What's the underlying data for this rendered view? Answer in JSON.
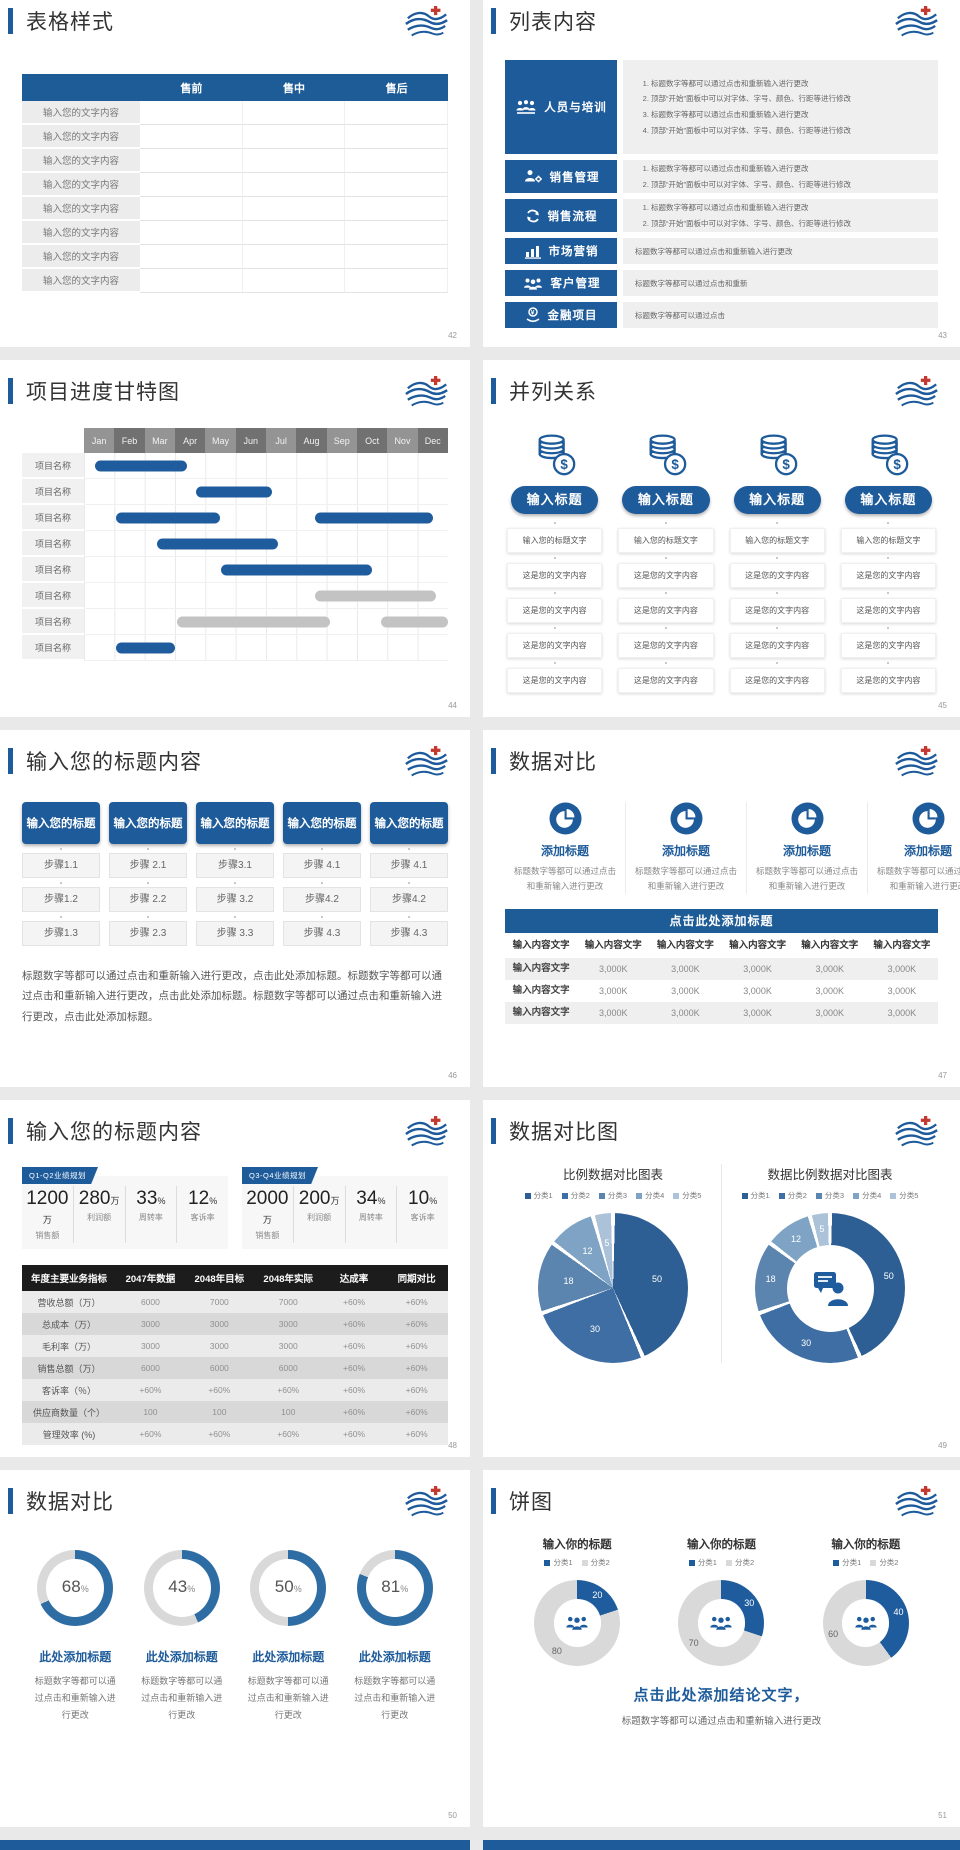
{
  "page": {
    "bg": "#e9e9e9",
    "accent": "#1e5b9a",
    "header_blue": "#1e5c97",
    "bar_blue": "#1f5c9e",
    "bar_gray": "#c3c3c3"
  },
  "chart_data": [
    {
      "type": "gantt",
      "title": "项目进度甘特图",
      "x_labels": [
        "Jan",
        "Feb",
        "Mar",
        "Apr",
        "May",
        "Jun",
        "Jul",
        "Aug",
        "Sep",
        "Oct",
        "Nov",
        "Dec"
      ],
      "rows": [
        {
          "label": "项目名称",
          "bars": [
            {
              "start": 0.35,
              "end": 3.4,
              "color": "#1f5c9e"
            }
          ]
        },
        {
          "label": "项目名称",
          "bars": [
            {
              "start": 3.7,
              "end": 6.2,
              "color": "#1f5c9e"
            }
          ]
        },
        {
          "label": "项目名称",
          "bars": [
            {
              "start": 1.05,
              "end": 4.5,
              "color": "#1f5c9e"
            },
            {
              "start": 7.6,
              "end": 11.5,
              "color": "#1f5c9e"
            }
          ]
        },
        {
          "label": "项目名称",
          "bars": [
            {
              "start": 2.4,
              "end": 6.4,
              "color": "#1f5c9e"
            }
          ]
        },
        {
          "label": "项目名称",
          "bars": [
            {
              "start": 4.5,
              "end": 9.5,
              "color": "#1f5c9e"
            }
          ]
        },
        {
          "label": "项目名称",
          "bars": [
            {
              "start": 7.6,
              "end": 11.6,
              "color": "#c3c3c3"
            }
          ]
        },
        {
          "label": "项目名称",
          "bars": [
            {
              "start": 3.05,
              "end": 8.1,
              "color": "#c3c3c3"
            },
            {
              "start": 9.8,
              "end": 12,
              "color": "#c3c3c3"
            }
          ]
        },
        {
          "label": "项目名称",
          "bars": [
            {
              "start": 1.05,
              "end": 3.0,
              "color": "#1f5c9e"
            }
          ]
        }
      ]
    },
    {
      "type": "pie",
      "title": "比例数据对比图表",
      "legend": [
        {
          "label": "分类1",
          "color": "#2d5f94"
        },
        {
          "label": "分类2",
          "color": "#3e6ea3"
        },
        {
          "label": "分类3",
          "color": "#5b84af"
        },
        {
          "label": "分类4",
          "color": "#7ea3c4"
        },
        {
          "label": "分类5",
          "color": "#abc2d9"
        }
      ],
      "values": [
        50,
        30,
        18,
        12,
        5
      ],
      "colors": [
        "#2d5f94",
        "#3e6ea3",
        "#5b84af",
        "#7ea3c4",
        "#abc2d9"
      ],
      "label_colors": [
        "#ffffff",
        "#ffffff",
        "#ffffff",
        "#ffffff",
        "#ffffff"
      ],
      "label_r": 0.6,
      "gap": true
    },
    {
      "type": "donut",
      "title": "数据比例数据对比图表",
      "legend": [
        {
          "label": "分类1",
          "color": "#2d5f94"
        },
        {
          "label": "分类2",
          "color": "#3e6ea3"
        },
        {
          "label": "分类3",
          "color": "#5b84af"
        },
        {
          "label": "分类4",
          "color": "#7ea3c4"
        },
        {
          "label": "分类5",
          "color": "#abc2d9"
        }
      ],
      "values": [
        50,
        30,
        18,
        12,
        5
      ],
      "colors": [
        "#2d5f94",
        "#3e6ea3",
        "#5b84af",
        "#7ea3c4",
        "#abc2d9"
      ],
      "label_colors": [
        "#ffffff",
        "#ffffff",
        "#ffffff",
        "#ffffff",
        "#ffffff"
      ],
      "label_r": 0.8,
      "gap": true
    },
    {
      "type": "gauge",
      "values": [
        68,
        43,
        50,
        81
      ],
      "unit": "%",
      "color": "#2e6da4",
      "track": "#d9d9d9"
    },
    {
      "type": "pie-group",
      "legend": [
        {
          "label": "分类1",
          "color": "#1f5c9e"
        },
        {
          "label": "分类2",
          "color": "#d9d9d9"
        }
      ],
      "series": [
        {
          "values": [
            20,
            80
          ],
          "colors": [
            "#1f5c9e",
            "#d9d9d9"
          ],
          "label_colors": [
            "#ffffff",
            "#666666"
          ],
          "label_r": 0.8
        },
        {
          "values": [
            30,
            70
          ],
          "colors": [
            "#1f5c9e",
            "#d9d9d9"
          ],
          "label_colors": [
            "#ffffff",
            "#666666"
          ],
          "label_r": 0.8
        },
        {
          "values": [
            40,
            60
          ],
          "colors": [
            "#1f5c9e",
            "#d9d9d9"
          ],
          "label_colors": [
            "#ffffff",
            "#666666"
          ],
          "label_r": 0.8
        }
      ]
    }
  ],
  "slides": {
    "s42": {
      "page": "42",
      "title": "表格样式",
      "table": {
        "headers": [
          "",
          "售前",
          "售中",
          "售后"
        ],
        "rows": [
          "输入您的文字内容",
          "输入您的文字内容",
          "输入您的文字内容",
          "输入您的文字内容",
          "输入您的文字内容",
          "输入您的文字内容",
          "输入您的文字内容",
          "输入您的文字内容"
        ]
      }
    },
    "s43": {
      "page": "43",
      "title": "列表内容",
      "items": [
        {
          "label": "人员与培训",
          "lines": [
            "标题数字等都可以通过点击和重新输入进行更改",
            "顶部“开始”面板中可以对字体、字号、颜色、行距等进行修改",
            "标题数字等都可以通过点击和重新输入进行更改",
            "顶部“开始”面板中可以对字体、字号、颜色、行距等进行修改"
          ]
        },
        {
          "label": "销售管理",
          "lines": [
            "标题数字等都可以通过点击和重新输入进行更改",
            "顶部“开始”面板中可以对字体、字号、颜色、行距等进行修改"
          ]
        },
        {
          "label": "销售流程",
          "lines": [
            "标题数字等都可以通过点击和重新输入进行更改",
            "顶部“开始”面板中可以对字体、字号、颜色、行距等进行修改"
          ]
        },
        {
          "label": "市场营销",
          "text": "标题数字等都可以通过点击和重新输入进行更改"
        },
        {
          "label": "客户管理",
          "text": "标题数字等都可以通过点击和重新"
        },
        {
          "label": "金融项目",
          "text": "标题数字等都可以通过点击"
        }
      ]
    },
    "s44": {
      "page": "44",
      "title": "项目进度甘特图"
    },
    "s45": {
      "page": "45",
      "title": "并列关系",
      "columns": [
        {
          "button": "输入标题",
          "rows": [
            "输入您的标题文字",
            "这是您的文字内容",
            "这是您的文字内容",
            "这是您的文字内容",
            "这是您的文字内容"
          ]
        },
        {
          "button": "输入标题",
          "rows": [
            "输入您的标题文字",
            "这是您的文字内容",
            "这是您的文字内容",
            "这是您的文字内容",
            "这是您的文字内容"
          ]
        },
        {
          "button": "输入标题",
          "rows": [
            "输入您的标题文字",
            "这是您的文字内容",
            "这是您的文字内容",
            "这是您的文字内容",
            "这是您的文字内容"
          ]
        },
        {
          "button": "输入标题",
          "rows": [
            "输入您的标题文字",
            "这是您的文字内容",
            "这是您的文字内容",
            "这是您的文字内容",
            "这是您的文字内容"
          ]
        }
      ]
    },
    "s46": {
      "page": "46",
      "title": "输入您的标题内容",
      "columns": [
        {
          "header": "输入您的标题",
          "steps": [
            "步骤1.1",
            "步骤1.2",
            "步骤1.3"
          ]
        },
        {
          "header": "输入您的标题",
          "steps": [
            "步骤 2.1",
            "步骤 2.2",
            "步骤 2.3"
          ]
        },
        {
          "header": "输入您的标题",
          "steps": [
            "步骤3.1",
            "步骤 3.2",
            "步骤 3.3"
          ]
        },
        {
          "header": "输入您的标题",
          "steps": [
            "步骤 4.1",
            "步骤4.2",
            "步骤 4.3"
          ]
        },
        {
          "header": "输入您的标题",
          "steps": [
            "步骤 4.1",
            "步骤4.2",
            "步骤 4.3"
          ]
        }
      ],
      "paragraph": "标题数字等都可以通过点击和重新输入进行更改，点击此处添加标题。标题数字等都可以通过点击和重新输入进行更改，点击此处添加标题。标题数字等都可以通过点击和重新输入进行更改，点击此处添加标题。"
    },
    "s47": {
      "page": "47",
      "title": "数据对比",
      "features": [
        {
          "title": "添加标题",
          "desc": "标题数字等都可以通过点击和重新输入进行更改"
        },
        {
          "title": "添加标题",
          "desc": "标题数字等都可以通过点击和重新输入进行更改"
        },
        {
          "title": "添加标题",
          "desc": "标题数字等都可以通过点击和重新输入进行更改"
        },
        {
          "title": "添加标题",
          "desc": "标题数字等都可以通过点击和重新输入进行更改"
        }
      ],
      "banner": "点击此处添加标题",
      "table": {
        "headers": [
          "输入内容文字",
          "输入内容文字",
          "输入内容文字",
          "输入内容文字",
          "输入内容文字",
          "输入内容文字"
        ],
        "rows": [
          {
            "label": "输入内容文字",
            "values": [
              "3,000K",
              "3,000K",
              "3,000K",
              "3,000K",
              "3,000K"
            ]
          },
          {
            "label": "输入内容文字",
            "values": [
              "3,000K",
              "3,000K",
              "3,000K",
              "3,000K",
              "3,000K"
            ]
          },
          {
            "label": "输入内容文字",
            "values": [
              "3,000K",
              "3,000K",
              "3,000K",
              "3,000K",
              "3,000K"
            ]
          }
        ]
      }
    },
    "s48": {
      "page": "48",
      "title": "输入您的标题内容",
      "groups": [
        {
          "badge": "Q1-Q2业绩规划",
          "stats": [
            {
              "value": "1200",
              "unit": "万",
              "label": "销售额"
            },
            {
              "value": "280",
              "unit": "万",
              "label": "利润额"
            },
            {
              "value": "33",
              "unit": "%",
              "label": "周转率"
            },
            {
              "value": "12",
              "unit": "%",
              "label": "客诉率"
            }
          ]
        },
        {
          "badge": "Q3-Q4业绩规划",
          "stats": [
            {
              "value": "2000",
              "unit": "万",
              "label": "销售额"
            },
            {
              "value": "200",
              "unit": "万",
              "label": "利润额"
            },
            {
              "value": "34",
              "unit": "%",
              "label": "周转率"
            },
            {
              "value": "10",
              "unit": "%",
              "label": "客诉率"
            }
          ]
        }
      ],
      "table": {
        "headers": [
          "年度主要业务指标",
          "2047年数据",
          "2048年目标",
          "2048年实际",
          "达成率",
          "同期对比"
        ],
        "rows": [
          {
            "label": "营收总额（万）",
            "values": [
              "6000",
              "7000",
              "7000",
              "+60%",
              "+60%"
            ]
          },
          {
            "label": "总成本（万）",
            "values": [
              "3000",
              "3000",
              "3000",
              "+60%",
              "+60%"
            ]
          },
          {
            "label": "毛利率（万）",
            "values": [
              "3000",
              "3000",
              "3000",
              "+60%",
              "+60%"
            ]
          },
          {
            "label": "销售总额（万）",
            "values": [
              "6000",
              "6000",
              "6000",
              "+60%",
              "+60%"
            ]
          },
          {
            "label": "客诉率（％）",
            "values": [
              "+60%",
              "+60%",
              "+60%",
              "+60%",
              "+60%"
            ]
          },
          {
            "label": "供应商数量（个）",
            "values": [
              "100",
              "100",
              "100",
              "+60%",
              "+60%"
            ]
          },
          {
            "label": "管理效率 (%)",
            "values": [
              "+60%",
              "+60%",
              "+60%",
              "+60%",
              "+60%"
            ]
          }
        ]
      }
    },
    "s49": {
      "page": "49",
      "title": "数据对比图"
    },
    "s50": {
      "page": "50",
      "title": "数据对比",
      "items": [
        {
          "title": "此处添加标题",
          "desc": "标题数字等都可以通过点击和重新输入进行更改"
        },
        {
          "title": "此处添加标题",
          "desc": "标题数字等都可以通过点击和重新输入进行更改"
        },
        {
          "title": "此处添加标题",
          "desc": "标题数字等都可以通过点击和重新输入进行更改"
        },
        {
          "title": "此处添加标题",
          "desc": "标题数字等都可以通过点击和重新输入进行更改"
        }
      ]
    },
    "s51": {
      "page": "51",
      "title": "饼图",
      "pies": [
        {
          "title": "输入你的标题"
        },
        {
          "title": "输入你的标题"
        },
        {
          "title": "输入你的标题"
        }
      ],
      "conclusion": "点击此处添加结论文字，",
      "note": "标题数字等都可以通过点击和重新输入进行更改"
    }
  }
}
